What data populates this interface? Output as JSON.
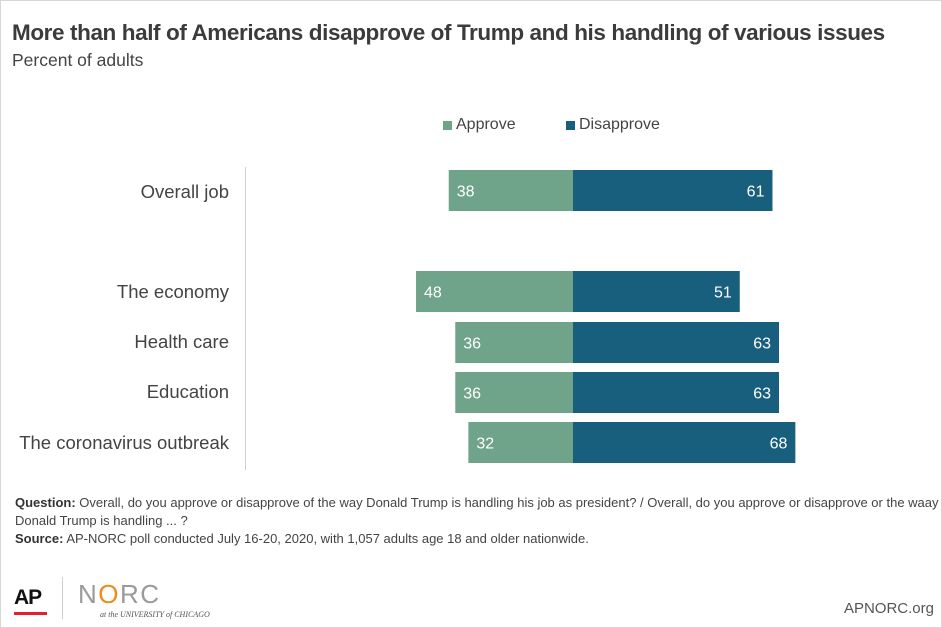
{
  "header": {
    "title": "More than half of Americans disapprove of Trump and his handling of various issues",
    "subtitle": "Percent of adults"
  },
  "colors": {
    "approve": "#6fa38a",
    "disapprove": "#185f7e",
    "text": "#444444"
  },
  "chart_data": {
    "type": "bar",
    "orientation": "horizontal-diverging",
    "title": "More than half of Americans disapprove of Trump and his handling of various issues",
    "subtitle": "Percent of adults",
    "categories": [
      "Overall job",
      "The economy",
      "Health care",
      "Education",
      "The coronavirus outbreak"
    ],
    "series": [
      {
        "name": "Approve",
        "values": [
          38,
          48,
          36,
          36,
          32
        ],
        "direction": "left"
      },
      {
        "name": "Disapprove",
        "values": [
          61,
          51,
          63,
          63,
          68
        ],
        "direction": "right"
      }
    ],
    "legend": {
      "position": "top-center",
      "entries": [
        "Approve",
        "Disapprove"
      ]
    },
    "grid": false
  },
  "footer": {
    "question_label": "Question:",
    "question_text": "Overall, do you approve or disapprove of the way Donald Trump is handling his job as president? / Overall, do you approve or disapprove or the waay Donald Trump is handling ... ?",
    "source_label": "Source:",
    "source_text": "AP-NORC poll conducted July 16-20, 2020, with 1,057 adults age 18 and older nationwide.",
    "ap_logo": "AP",
    "norc_logo_left": "N",
    "norc_logo_o": "O",
    "norc_logo_right": "RC",
    "norc_sub": "at the UNIVERSITY of CHICAGO",
    "site": "APNORC.org"
  }
}
